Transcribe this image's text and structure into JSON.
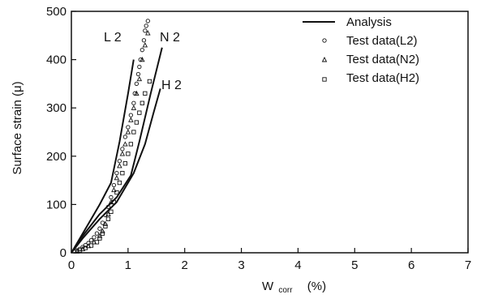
{
  "chart_data": {
    "type": "scatter",
    "xlabel": "W",
    "xlabel_sub": "corr",
    "xlabel_unit": "(%)",
    "ylabel": "Surface strain (μ)",
    "xlim": [
      0,
      7
    ],
    "ylim": [
      0,
      500
    ],
    "xticks": [
      0,
      1,
      2,
      3,
      4,
      5,
      6,
      7
    ],
    "yticks": [
      0,
      100,
      200,
      300,
      400,
      500
    ],
    "grid": false,
    "legend_position": "top-right",
    "legend": [
      {
        "label": "Analysis",
        "marker": "line"
      },
      {
        "label": "Test data(L2)",
        "marker": "circle"
      },
      {
        "label": "Test data(N2)",
        "marker": "triangle"
      },
      {
        "label": "Test data(H2)",
        "marker": "square"
      }
    ],
    "curve_labels": [
      "L 2",
      "N 2",
      "H 2"
    ],
    "series": [
      {
        "name": "L 2",
        "kind": "analysis",
        "x": [
          0,
          0.1,
          0.3,
          0.5,
          0.7,
          0.85,
          1.0,
          1.1
        ],
        "y": [
          0,
          20,
          60,
          100,
          145,
          230,
          330,
          400
        ]
      },
      {
        "name": "N 2",
        "kind": "analysis",
        "x": [
          0,
          0.2,
          0.5,
          0.8,
          1.05,
          1.2,
          1.4,
          1.6
        ],
        "y": [
          0,
          35,
          80,
          115,
          160,
          230,
          330,
          425
        ]
      },
      {
        "name": "H 2",
        "kind": "analysis",
        "x": [
          0,
          0.2,
          0.5,
          0.8,
          1.1,
          1.3,
          1.45,
          1.57
        ],
        "y": [
          0,
          30,
          70,
          105,
          165,
          225,
          290,
          340
        ]
      },
      {
        "name": "L2",
        "kind": "test",
        "marker": "circle",
        "x": [
          0.05,
          0.1,
          0.15,
          0.2,
          0.25,
          0.3,
          0.35,
          0.4,
          0.45,
          0.5,
          0.55,
          0.6,
          0.65,
          0.7,
          0.75,
          0.8,
          0.85,
          0.9,
          0.95,
          1.0,
          1.05,
          1.1,
          1.12,
          1.15,
          1.18,
          1.2,
          1.22,
          1.25,
          1.28,
          1.3,
          1.32,
          1.35
        ],
        "y": [
          3,
          5,
          8,
          12,
          16,
          20,
          26,
          32,
          40,
          50,
          62,
          78,
          95,
          115,
          140,
          165,
          190,
          215,
          240,
          260,
          285,
          310,
          330,
          350,
          370,
          385,
          400,
          420,
          440,
          460,
          470,
          480
        ]
      },
      {
        "name": "N2",
        "kind": "test",
        "marker": "triangle",
        "x": [
          0.1,
          0.2,
          0.3,
          0.4,
          0.5,
          0.55,
          0.6,
          0.65,
          0.7,
          0.75,
          0.8,
          0.85,
          0.9,
          0.95,
          1.0,
          1.05,
          1.1,
          1.15,
          1.2,
          1.25,
          1.3,
          1.35
        ],
        "y": [
          3,
          8,
          14,
          22,
          35,
          45,
          60,
          80,
          105,
          130,
          155,
          180,
          205,
          225,
          250,
          275,
          300,
          330,
          360,
          400,
          430,
          455
        ]
      },
      {
        "name": "H2",
        "kind": "test",
        "marker": "square",
        "x": [
          0.15,
          0.25,
          0.35,
          0.45,
          0.5,
          0.55,
          0.6,
          0.65,
          0.7,
          0.75,
          0.8,
          0.85,
          0.9,
          0.95,
          1.0,
          1.05,
          1.1,
          1.15,
          1.2,
          1.25,
          1.3,
          1.38
        ],
        "y": [
          5,
          10,
          15,
          22,
          30,
          40,
          55,
          70,
          85,
          105,
          125,
          145,
          165,
          185,
          205,
          225,
          250,
          270,
          290,
          310,
          330,
          355
        ]
      }
    ]
  }
}
